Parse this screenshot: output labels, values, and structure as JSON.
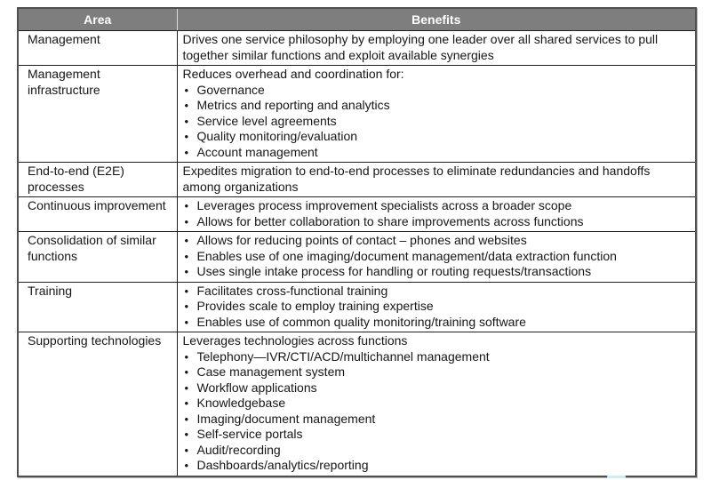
{
  "colors": {
    "header_bg": "#7e7e7e",
    "header_text": "#ffffff",
    "body_text": "#161616",
    "grid_line": "#1f1f1f",
    "outer_border": "#4f4f4f",
    "header_divider": "#dcdcdc",
    "artifact": "#cdeef5"
  },
  "table": {
    "headers": [
      "Area",
      "Benefits"
    ],
    "rows": [
      {
        "area": "Management",
        "intro": "Drives one service philosophy by employing one leader over all shared services to pull together similar functions and exploit available synergies",
        "bullets": []
      },
      {
        "area": "Management infrastructure",
        "intro": "Reduces overhead and coordination for:",
        "bullets": [
          "Governance",
          "Metrics and reporting and analytics",
          "Service level agreements",
          "Quality monitoring/evaluation",
          "Account management"
        ]
      },
      {
        "area": "End-to-end (E2E) processes",
        "intro": "Expedites migration to end-to-end processes to eliminate redundancies and handoffs among organizations",
        "bullets": []
      },
      {
        "area": "Continuous improvement",
        "intro": "",
        "bullets": [
          "Leverages process improvement specialists across a broader scope",
          "Allows for better collaboration to share improvements across functions"
        ]
      },
      {
        "area": "Consolidation of similar functions",
        "intro": "",
        "bullets": [
          "Allows for reducing points of contact – phones and websites",
          "Enables use of one imaging/document management/data extraction function",
          "Uses single intake process for handling or routing requests/transactions"
        ]
      },
      {
        "area": "Training",
        "intro": "",
        "bullets": [
          "Facilitates cross-functional training",
          "Provides scale to employ training expertise",
          "Enables use of common quality monitoring/training software"
        ]
      },
      {
        "area": "Supporting technologies",
        "intro": "Leverages technologies across functions",
        "bullets": [
          "Telephony—IVR/CTI/ACD/multichannel management",
          "Case management system",
          "Workflow applications",
          "Knowledgebase",
          "Imaging/document management",
          "Self-service portals",
          "Audit/recording",
          "Dashboards/analytics/reporting"
        ]
      }
    ]
  }
}
